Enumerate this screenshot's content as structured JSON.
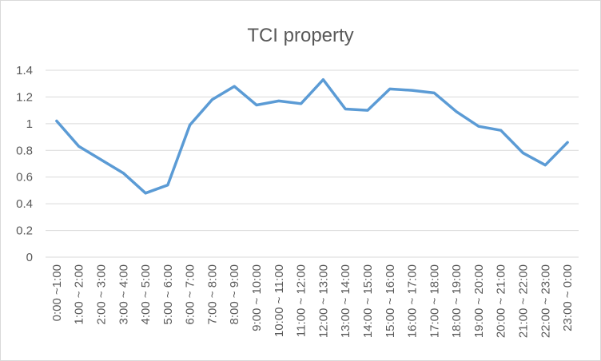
{
  "chart_data": {
    "type": "line",
    "title": "TCI property",
    "xlabel": "",
    "ylabel": "",
    "categories": [
      "0:00 ~1:00",
      "1:00 ~ 2:00",
      "2:00 ~ 3:00",
      "3:00 ~ 4:00",
      "4:00 ~ 5:00",
      "5:00 ~ 6:00",
      "6:00 ~ 7:00",
      "7:00 ~ 8:00",
      "8:00 ~ 9:00",
      "9:00 ~ 10:00",
      "10:00 ~ 11:00",
      "11:00 ~ 12:00",
      "12:00 ~ 13:00",
      "13:00 ~ 14:00",
      "14:00 ~ 15:00",
      "15:00 ~ 16:00",
      "16:00 ~ 17:00",
      "17:00 ~ 18:00",
      "18:00 ~ 19:00",
      "19:00 ~ 20:00",
      "20:00 ~ 21:00",
      "21:00 ~ 22:00",
      "22:00 ~ 23:00",
      "23:00 ~ 0:00"
    ],
    "series": [
      {
        "values": [
          1.02,
          0.83,
          0.73,
          0.63,
          0.48,
          0.54,
          0.99,
          1.18,
          1.28,
          1.14,
          1.17,
          1.15,
          1.33,
          1.11,
          1.1,
          1.26,
          1.25,
          1.23,
          1.09,
          0.98,
          0.95,
          0.78,
          0.69,
          0.86
        ],
        "color": "#5B9BD5"
      }
    ],
    "ylim": [
      0,
      1.4
    ],
    "yticks": [
      0,
      0.2,
      0.4,
      0.6,
      0.8,
      1,
      1.2,
      1.4
    ],
    "ytick_labels": [
      "0",
      "0.2",
      "0.4",
      "0.6",
      "0.8",
      "1",
      "1.2",
      "1.4"
    ],
    "grid": true,
    "gridline_color": "#d9d9d9",
    "legend": "none"
  }
}
